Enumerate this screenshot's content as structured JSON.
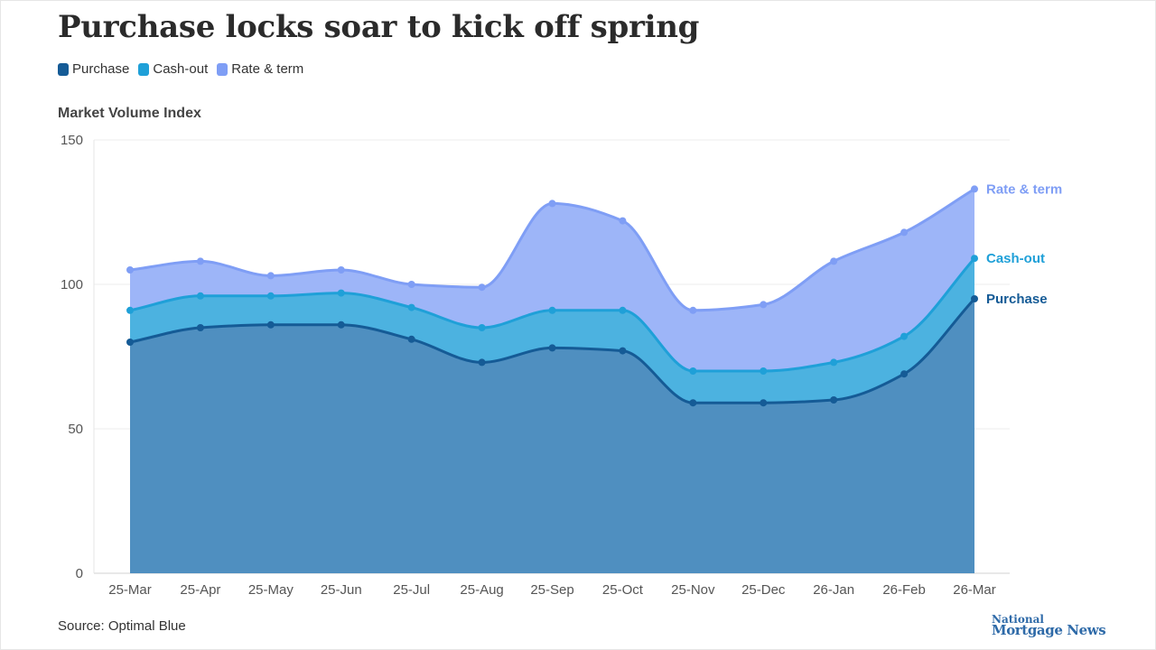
{
  "header": {
    "title": "Purchase locks soar to kick off spring"
  },
  "legend": [
    {
      "label": "Purchase",
      "color": "#155b96"
    },
    {
      "label": "Cash-out",
      "color": "#1fa0d8"
    },
    {
      "label": "Rate & term",
      "color": "#7f9ef5"
    }
  ],
  "footer": {
    "source": "Source: Optimal Blue",
    "brand_line1": "National",
    "brand_line2": "Mortgage News"
  },
  "chart_data": {
    "type": "area",
    "stacked": false,
    "ylabel": "Market Volume Index",
    "xlabel": "",
    "ylim": [
      0,
      150
    ],
    "yticks": [
      0,
      50,
      100,
      150
    ],
    "categories": [
      "25-Mar",
      "25-Apr",
      "25-May",
      "25-Jun",
      "25-Jul",
      "25-Aug",
      "25-Sep",
      "25-Oct",
      "25-Nov",
      "25-Dec",
      "26-Jan",
      "26-Feb",
      "26-Mar"
    ],
    "series": [
      {
        "name": "Rate & term",
        "color": "#7f9ef5",
        "fill": "#9db5f8",
        "values": [
          105,
          108,
          103,
          105,
          100,
          99,
          128,
          122,
          91,
          93,
          108,
          118,
          133
        ]
      },
      {
        "name": "Cash-out",
        "color": "#1fa0d8",
        "fill": "#4cb2e0",
        "values": [
          91,
          96,
          96,
          97,
          92,
          85,
          91,
          91,
          70,
          70,
          73,
          82,
          109
        ]
      },
      {
        "name": "Purchase",
        "color": "#155b96",
        "fill": "#4f8fc0",
        "values": [
          80,
          85,
          86,
          86,
          81,
          73,
          78,
          77,
          59,
          59,
          60,
          69,
          95
        ]
      }
    ],
    "grid": true,
    "legend_position": "top-left",
    "end_labels": true
  }
}
